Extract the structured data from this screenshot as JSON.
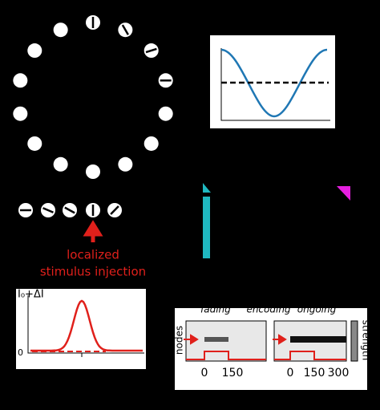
{
  "stimulus": {
    "label_line1": "localized",
    "label_line2": "stimulus injection"
  },
  "input_plot": {
    "y_label": "I₀+ΔI",
    "y_zero": "0"
  },
  "heatmaps": {
    "titles": [
      "fading",
      "encoding",
      "ongoing"
    ],
    "y_label": "nodes",
    "colorbar_label": "strength",
    "left_ticks": [
      "0",
      "150"
    ],
    "right_ticks": [
      "0",
      "150",
      "300"
    ]
  }
}
